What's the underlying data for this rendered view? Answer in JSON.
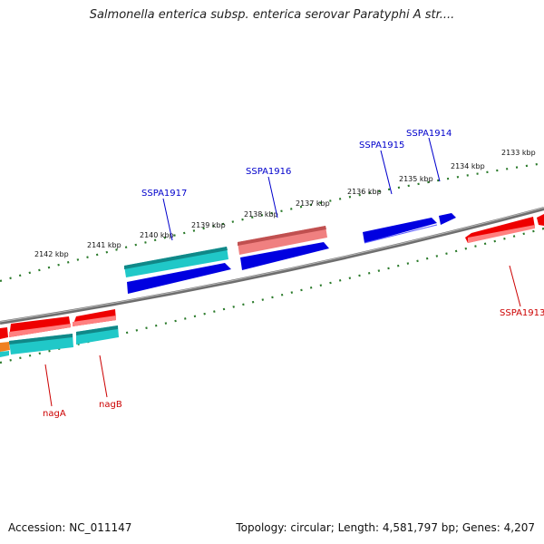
{
  "title": "Salmonella enterica subsp. enterica serovar Paratyphi A str....",
  "footer": {
    "accession": "Accession: NC_011147",
    "topology": "Topology: circular; Length: 4,581,797 bp; Genes: 4,207"
  },
  "colors": {
    "backbone": "#808080",
    "tick": "#2a7a2a",
    "gene_forward": "#0000e0",
    "gene_reverse": "#ee0000",
    "gene_light_red": "#f08080",
    "gene_cyan": "#20c8c8",
    "gene_orange": "#f08020",
    "label_blue": "#0000cc",
    "label_red": "#cc0000"
  },
  "tick_labels": [
    "2133 kbp",
    "2134 kbp",
    "2135 kbp",
    "2136 kbp",
    "2137 kbp",
    "2138 kbp",
    "2139 kbp",
    "2140 kbp",
    "2141 kbp",
    "2142 kbp"
  ],
  "gene_labels": {
    "SSPA1914": "SSPA1914",
    "SSPA1915": "SSPA1915",
    "SSPA1916": "SSPA1916",
    "SSPA1917": "SSPA1917",
    "SSPA1913": "SSPA1913",
    "nagA": "nagA",
    "nagB": "nagB"
  }
}
